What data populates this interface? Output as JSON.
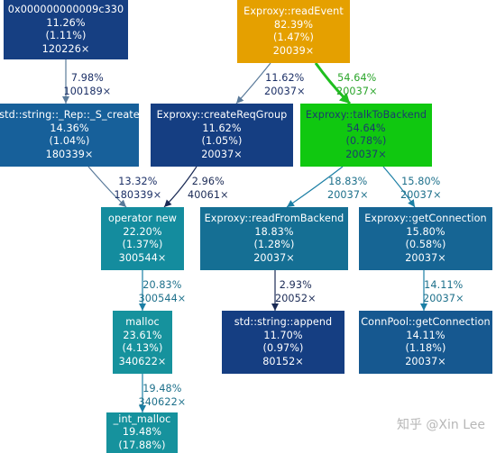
{
  "colors": {
    "background": "#ffffff",
    "node_dark_blue": "#123c82",
    "node_blue": "#15559a",
    "node_teal": "#156f94",
    "node_cyan": "#16929d",
    "node_orange": "#e5a000",
    "node_green": "#14c814",
    "edge_slate": "#5a7a9a",
    "edge_teal": "#1c7fa5",
    "edge_green": "#1fbf1f",
    "label_navy": "#1b2f66",
    "label_teal": "#1c6f8a",
    "label_green": "#2aa52a",
    "watermark": "#b7b7b7"
  },
  "nodes": [
    {
      "id": "n0x",
      "name": "0x000000000009c330",
      "pct": "11.26%",
      "self": "(1.11%)",
      "samples": "120226×",
      "color": "#163f82",
      "text": "#ffffff"
    },
    {
      "id": "readEvent",
      "name": "Exproxy::readEvent",
      "pct": "82.39%",
      "self": "(1.47%)",
      "samples": "20039×",
      "color": "#e5a000",
      "text": "#ffffff"
    },
    {
      "id": "rep",
      "name": "std::string::_Rep::_S_create",
      "pct": "14.36%",
      "self": "(1.04%)",
      "samples": "180339×",
      "color": "#17609a",
      "text": "#ffffff"
    },
    {
      "id": "createReq",
      "name": "Exproxy::createReqGroup",
      "pct": "11.62%",
      "self": "(1.05%)",
      "samples": "20037×",
      "color": "#153e82",
      "text": "#ffffff"
    },
    {
      "id": "talk",
      "name": "Exproxy::talkToBackend",
      "pct": "54.64%",
      "self": "(0.78%)",
      "samples": "20037×",
      "color": "#10c810",
      "text": "#1c3a6e"
    },
    {
      "id": "opnew",
      "name": "operator new",
      "pct": "22.20%",
      "self": "(1.37%)",
      "samples": "300544×",
      "color": "#148c9e",
      "text": "#ffffff"
    },
    {
      "id": "readFrom",
      "name": "Exproxy::readFromBackend",
      "pct": "18.83%",
      "self": "(1.28%)",
      "samples": "20037×",
      "color": "#156f94",
      "text": "#ffffff"
    },
    {
      "id": "getConn",
      "name": "Exproxy::getConnection",
      "pct": "15.80%",
      "self": "(0.58%)",
      "samples": "20037×",
      "color": "#166594",
      "text": "#ffffff"
    },
    {
      "id": "malloc",
      "name": "malloc",
      "pct": "23.61%",
      "self": "(4.13%)",
      "samples": "340622×",
      "color": "#16929d",
      "text": "#ffffff"
    },
    {
      "id": "append",
      "name": "std::string::append",
      "pct": "11.70%",
      "self": "(0.97%)",
      "samples": "80152×",
      "color": "#153e82",
      "text": "#ffffff"
    },
    {
      "id": "poolConn",
      "name": "ConnPool::getConnection",
      "pct": "14.11%",
      "self": "(1.18%)",
      "samples": "20037×",
      "color": "#165890",
      "text": "#ffffff"
    },
    {
      "id": "intMalloc",
      "name": "_int_malloc",
      "pct": "19.48%",
      "self": "(17.88%)",
      "samples": "",
      "color": "#16929d",
      "text": "#ffffff"
    }
  ],
  "edges": [
    {
      "id": "e1",
      "from": "n0x",
      "to": "rep",
      "pct": "7.98%",
      "samples": "100189×",
      "color": "#5a7a9a",
      "label_color": "#1b2f66",
      "bold": false
    },
    {
      "id": "e2",
      "from": "readEvent",
      "to": "createReq",
      "pct": "11.62%",
      "samples": "20037×",
      "color": "#5a7a9a",
      "label_color": "#1b2f66",
      "bold": false
    },
    {
      "id": "e3",
      "from": "readEvent",
      "to": "talk",
      "pct": "54.64%",
      "samples": "20037×",
      "color": "#1fbf1f",
      "label_color": "#2aa52a",
      "bold": true
    },
    {
      "id": "e4",
      "from": "rep",
      "to": "opnew",
      "pct": "13.32%",
      "samples": "180339×",
      "color": "#5a7a9a",
      "label_color": "#1b2f66",
      "bold": false
    },
    {
      "id": "e5",
      "from": "createReq",
      "to": "opnew",
      "pct": "2.96%",
      "samples": "40061×",
      "color": "#1a2a55",
      "label_color": "#1a2a55",
      "bold": false
    },
    {
      "id": "e6",
      "from": "talk",
      "to": "readFrom",
      "pct": "18.83%",
      "samples": "20037×",
      "color": "#1c7fa5",
      "label_color": "#1c6f8a",
      "bold": false
    },
    {
      "id": "e7",
      "from": "talk",
      "to": "getConn",
      "pct": "15.80%",
      "samples": "20037×",
      "color": "#1c7fa5",
      "label_color": "#1c6f8a",
      "bold": false
    },
    {
      "id": "e8",
      "from": "opnew",
      "to": "malloc",
      "pct": "20.83%",
      "samples": "300544×",
      "color": "#1c7fa5",
      "label_color": "#1c6f8a",
      "bold": false
    },
    {
      "id": "e9",
      "from": "readFrom",
      "to": "append",
      "pct": "2.93%",
      "samples": "20052×",
      "color": "#1a2a55",
      "label_color": "#1a2a55",
      "bold": false
    },
    {
      "id": "e10",
      "from": "getConn",
      "to": "poolConn",
      "pct": "14.11%",
      "samples": "20037×",
      "color": "#1c7fa5",
      "label_color": "#1c6f8a",
      "bold": false
    },
    {
      "id": "e11",
      "from": "malloc",
      "to": "intMalloc",
      "pct": "19.48%",
      "samples": "340622×",
      "color": "#1c7fa5",
      "label_color": "#1c6f8a",
      "bold": false
    }
  ],
  "watermark": "知乎 @Xin Lee"
}
